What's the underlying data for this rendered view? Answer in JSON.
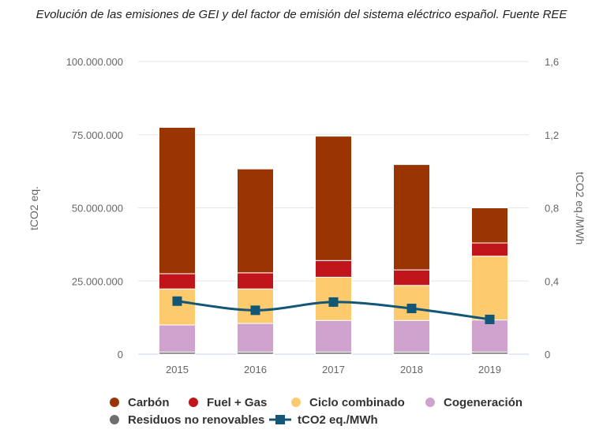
{
  "title": "Evolución de las emisiones de GEI y del factor de emisión del sistema eléctrico español. Fuente REE",
  "chart_data": {
    "type": "bar",
    "stacked": true,
    "categories": [
      "2015",
      "2016",
      "2017",
      "2018",
      "2019"
    ],
    "series": [
      {
        "name": "Residuos no renovables",
        "color": "#6e6e6e",
        "values": [
          700000,
          700000,
          700000,
          700000,
          700000
        ]
      },
      {
        "name": "Cogeneración",
        "color": "#cfa3cd",
        "values": [
          9300000,
          9800000,
          10800000,
          10800000,
          11000000
        ]
      },
      {
        "name": "Ciclo combinado",
        "color": "#fdcb6e",
        "values": [
          12300000,
          11800000,
          14800000,
          12000000,
          21800000
        ]
      },
      {
        "name": "Fuel + Gas",
        "color": "#c0151b",
        "values": [
          5200000,
          5500000,
          5700000,
          5300000,
          4500000
        ]
      },
      {
        "name": "Carbón",
        "color": "#9a3400",
        "values": [
          50000000,
          35500000,
          42500000,
          36000000,
          12000000
        ]
      }
    ],
    "line_series": {
      "name": "tCO2 eq./MWh",
      "color": "#135676",
      "values": [
        0.29,
        0.24,
        0.285,
        0.25,
        0.19
      ]
    },
    "ylabel": "tCO2 eq.",
    "y2label": "tCO2 eq./MWh",
    "ylim": [
      0,
      100000000
    ],
    "y2lim": [
      0,
      1.6
    ],
    "yticks": [
      "0",
      "25.000.000",
      "50.000.000",
      "75.000.000",
      "100.000.000"
    ],
    "y2ticks": [
      "0",
      "0,4",
      "0,8",
      "1,2",
      "1,6"
    ],
    "legend_order": [
      "Carbón",
      "Fuel + Gas",
      "Ciclo combinado",
      "Cogeneración",
      "Residuos no renovables",
      "tCO2 eq./MWh"
    ],
    "legend_position": "bottom",
    "grid": true
  }
}
